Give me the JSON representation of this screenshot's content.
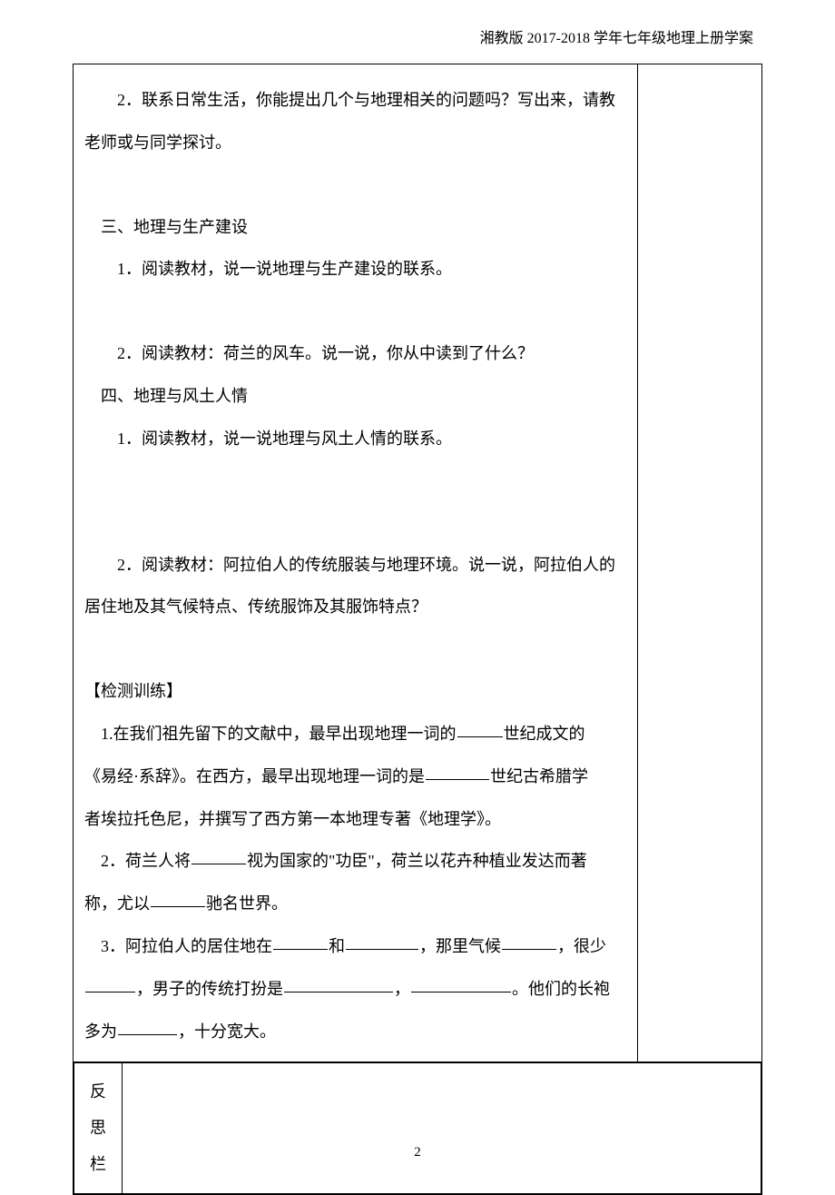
{
  "header": "湘教版 2017-2018 学年七年级地理上册学案",
  "main": {
    "p1a": "2．联系日常生活，你能提出几个与地理相关的问题吗？写出来，请教",
    "p1b": "老师或与同学探讨。",
    "h3": "三、地理与生产建设",
    "p3_1": "1．阅读教材，说一说地理与生产建设的联系。",
    "p3_2": "2．阅读教材：荷兰的风车。说一说，你从中读到了什么？",
    "h4": "四、地理与风土人情",
    "p4_1": "1．阅读教材，说一说地理与风土人情的联系。",
    "p4_2a": "2．阅读教材：阿拉伯人的传统服装与地理环境。说一说，阿拉伯人的",
    "p4_2b": "居住地及其气候特点、传统服饰及其服饰特点？",
    "test_h": "【检测训练】",
    "t1a": "1.在我们祖先留下的文献中，最早出现地理一词的",
    "t1b": "世纪成文的",
    "t1c": "《易经·系辞》。在西方，最早出现地理一词的是",
    "t1d": "世纪古希腊学",
    "t1e": "者埃拉托色尼，并撰写了西方第一本地理专著《地理学》。",
    "t2a": "2．荷兰人将",
    "t2b": "视为国家的\"功臣\"，荷兰以花卉种植业发达而著",
    "t2c": "称，尤以",
    "t2d": "驰名世界。",
    "t3a": "3．阿拉伯人的居住地在",
    "t3b": "和",
    "t3c": "，那里气候",
    "t3d": "，很少",
    "t3e": "，男子的传统打扮是",
    "t3f": "，",
    "t3g": "。他们的长袍",
    "t3h": "多为",
    "t3i": "，十分宽大。"
  },
  "reflect_label": "反思栏",
  "page_number": "2",
  "blank_widths": {
    "w50": "50px",
    "w60": "60px",
    "w70": "70px",
    "w80": "80px",
    "w100": "100px",
    "w120": "120px"
  }
}
